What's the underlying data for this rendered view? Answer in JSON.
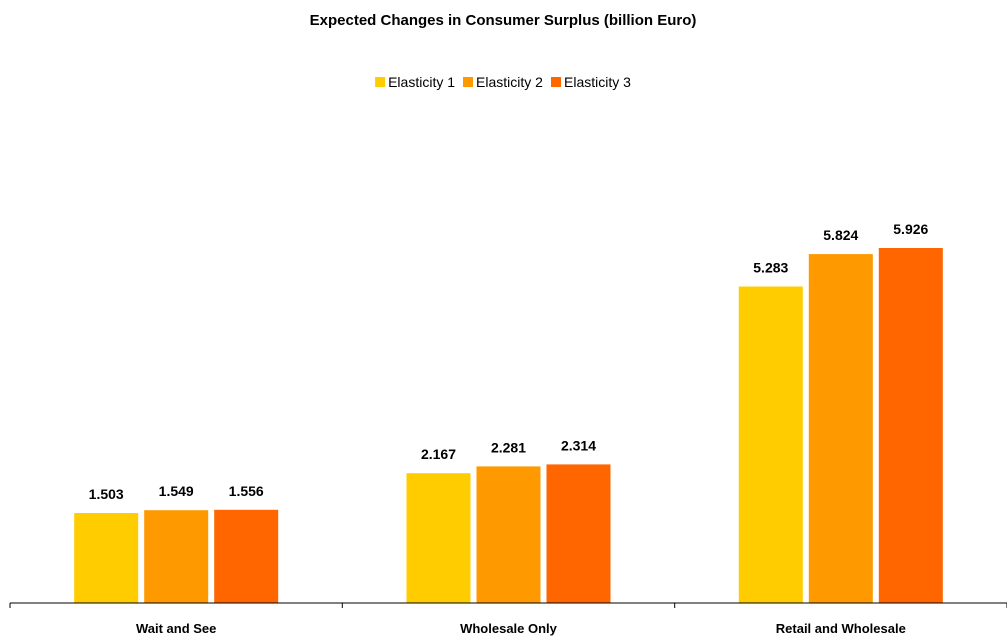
{
  "chart_data": {
    "type": "bar",
    "title": "Expected Changes in Consumer Surplus (billion Euro)",
    "xlabel": "",
    "ylabel": "",
    "categories": [
      "Wait and See",
      "Wholesale Only",
      "Retail and Wholesale"
    ],
    "series": [
      {
        "name": "Elasticity 1",
        "color": "#FFCC00",
        "values": [
          1.503,
          2.167,
          5.283
        ],
        "labels": [
          "1.503",
          "2.167",
          "5.283"
        ]
      },
      {
        "name": "Elasticity 2",
        "color": "#FF9900",
        "values": [
          1.549,
          2.281,
          5.824
        ],
        "labels": [
          "1.549",
          "2.281",
          "5.824"
        ]
      },
      {
        "name": "Elasticity 3",
        "color": "#FF6600",
        "values": [
          1.556,
          2.314,
          5.926
        ],
        "labels": [
          "1.556",
          "2.314",
          "5.926"
        ]
      }
    ],
    "ylim": [
      0,
      5.926
    ],
    "y_axis_visible": false,
    "grid": false,
    "legend_position": "top-center",
    "data_labels": true
  }
}
